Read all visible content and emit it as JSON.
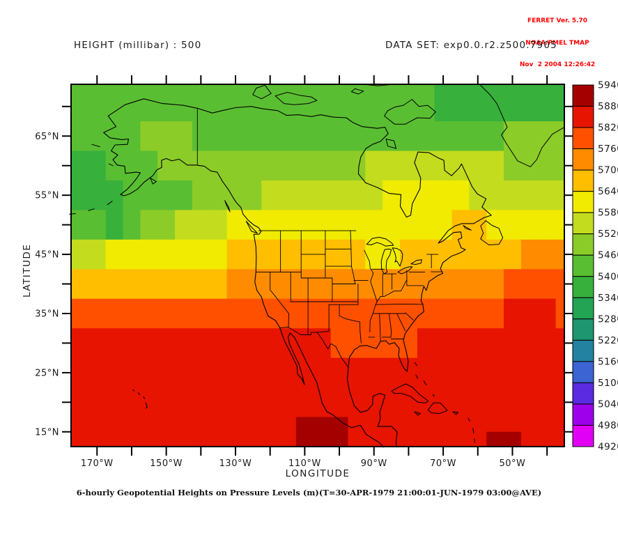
{
  "stamp": {
    "line1": "FERRET Ver. 5.70",
    "line2": "NOAA/PMEL TMAP",
    "line3": "Nov  2 2004 12:26:42",
    "color": "#FF0000"
  },
  "titles": {
    "left": "HEIGHT (millibar) : 500",
    "right": "DATA SET: exp0.0.r2.z500.7905"
  },
  "caption": "6-hourly Geopotential Heights on Pressure Levels (m)(T=30-APR-1979 21:00:01-JUN-1979 03:00@AVE)",
  "axes": {
    "x": {
      "label": "LONGITUDE",
      "minor_lons": [
        -170,
        -160,
        -150,
        -140,
        -130,
        -120,
        -110,
        -100,
        -90,
        -80,
        -70,
        -60,
        -50,
        -40
      ],
      "major_lons": [
        -170,
        -150,
        -130,
        -110,
        -90,
        -70,
        -50
      ],
      "major_labels": [
        "170°W",
        "150°W",
        "130°W",
        "110°W",
        "90°W",
        "70°W",
        "50°W"
      ]
    },
    "y": {
      "label": "LATITUDE",
      "minor_lats": [
        70,
        65,
        60,
        55,
        50,
        45,
        40,
        35,
        30,
        25,
        20,
        15
      ],
      "major_lats": [
        65,
        55,
        45,
        35,
        25,
        15
      ],
      "major_labels": [
        "65°N",
        "55°N",
        "45°N",
        "35°N",
        "25°N",
        "15°N"
      ]
    }
  },
  "colorbar": {
    "labels_top_to_bottom": [
      "5940",
      "5880",
      "5820",
      "5760",
      "5700",
      "5640",
      "5580",
      "5520",
      "5460",
      "5400",
      "5340",
      "5280",
      "5220",
      "5160",
      "5100",
      "5040",
      "4980",
      "4920"
    ]
  },
  "chart_data": {
    "type": "heatmap",
    "title": "HEIGHT (millibar) : 500",
    "xlabel": "LONGITUDE",
    "ylabel": "LATITUDE",
    "units": "m",
    "level_min": 4920,
    "level_max": 5940,
    "level_step": 60,
    "palette": [
      "#E100F5",
      "#9D00EB",
      "#5A2BE1",
      "#3C64D2",
      "#2382A0",
      "#1E9670",
      "#23A455",
      "#37B03C",
      "#5ABE32",
      "#8CCC28",
      "#C3DC1E",
      "#F0EB00",
      "#FFBE00",
      "#FF8C00",
      "#FF5000",
      "#E61400",
      "#A50000"
    ],
    "lon_edges": [
      -177.5,
      -172.5,
      -167.5,
      -162.5,
      -157.5,
      -152.5,
      -147.5,
      -142.5,
      -137.5,
      -132.5,
      -127.5,
      -122.5,
      -117.5,
      -112.5,
      -107.5,
      -102.5,
      -97.5,
      -92.5,
      -87.5,
      -82.5,
      -77.5,
      -72.5,
      -67.5,
      -62.5,
      -57.5,
      -52.5,
      -47.5,
      -42.5,
      -37.5,
      -35
    ],
    "lat_edges": [
      73.75,
      67.5,
      62.5,
      57.5,
      52.5,
      47.5,
      42.5,
      37.5,
      32.5,
      27.5,
      22.5,
      17.5,
      15,
      12.5
    ],
    "values": [
      [
        5430,
        5430,
        5430,
        5430,
        5430,
        5430,
        5430,
        5430,
        5430,
        5430,
        5430,
        5430,
        5430,
        5430,
        5430,
        5430,
        5430,
        5430,
        5430,
        5430,
        5430,
        5370,
        5370,
        5370,
        5370,
        5370,
        5370,
        5370,
        5370
      ],
      [
        5430,
        5430,
        5430,
        5430,
        5490,
        5490,
        5490,
        5430,
        5430,
        5430,
        5430,
        5430,
        5430,
        5430,
        5430,
        5430,
        5430,
        5430,
        5430,
        5430,
        5430,
        5430,
        5430,
        5430,
        5430,
        5490,
        5490,
        5490,
        5490
      ],
      [
        5370,
        5370,
        5430,
        5430,
        5430,
        5490,
        5490,
        5490,
        5490,
        5490,
        5490,
        5490,
        5490,
        5490,
        5490,
        5490,
        5490,
        5550,
        5550,
        5550,
        5550,
        5550,
        5550,
        5550,
        5550,
        5490,
        5490,
        5490,
        5490
      ],
      [
        5370,
        5370,
        5370,
        5430,
        5430,
        5430,
        5430,
        5490,
        5490,
        5490,
        5490,
        5550,
        5550,
        5550,
        5550,
        5550,
        5550,
        5550,
        5610,
        5610,
        5610,
        5610,
        5610,
        5550,
        5550,
        5550,
        5550,
        5550,
        5550
      ],
      [
        5430,
        5430,
        5370,
        5430,
        5490,
        5490,
        5550,
        5550,
        5550,
        5610,
        5610,
        5610,
        5610,
        5610,
        5610,
        5610,
        5610,
        5610,
        5610,
        5610,
        5610,
        5610,
        5670,
        5670,
        5610,
        5610,
        5610,
        5610,
        5610
      ],
      [
        5550,
        5550,
        5610,
        5610,
        5610,
        5610,
        5610,
        5610,
        5610,
        5670,
        5670,
        5670,
        5670,
        5670,
        5670,
        5670,
        5670,
        5610,
        5610,
        5670,
        5670,
        5670,
        5670,
        5670,
        5670,
        5670,
        5730,
        5730,
        5730
      ],
      [
        5670,
        5670,
        5670,
        5670,
        5670,
        5670,
        5670,
        5670,
        5670,
        5730,
        5730,
        5730,
        5730,
        5730,
        5730,
        5730,
        5730,
        5730,
        5730,
        5730,
        5730,
        5730,
        5730,
        5730,
        5730,
        5790,
        5790,
        5790,
        5790
      ],
      [
        5790,
        5790,
        5790,
        5790,
        5790,
        5790,
        5790,
        5790,
        5790,
        5790,
        5790,
        5790,
        5790,
        5790,
        5790,
        5790,
        5790,
        5790,
        5790,
        5790,
        5790,
        5790,
        5790,
        5790,
        5790,
        5850,
        5850,
        5850,
        5790
      ],
      [
        5850,
        5850,
        5850,
        5850,
        5850,
        5850,
        5850,
        5850,
        5850,
        5850,
        5850,
        5850,
        5850,
        5850,
        5850,
        5790,
        5790,
        5790,
        5790,
        5790,
        5850,
        5850,
        5850,
        5850,
        5850,
        5850,
        5850,
        5850,
        5850
      ],
      [
        5850,
        5850,
        5850,
        5850,
        5850,
        5850,
        5850,
        5850,
        5850,
        5850,
        5850,
        5850,
        5850,
        5850,
        5850,
        5850,
        5850,
        5850,
        5850,
        5850,
        5850,
        5850,
        5850,
        5850,
        5850,
        5850,
        5850,
        5850,
        5850
      ],
      [
        5850,
        5850,
        5850,
        5850,
        5850,
        5850,
        5850,
        5850,
        5850,
        5850,
        5850,
        5850,
        5850,
        5850,
        5850,
        5850,
        5850,
        5850,
        5850,
        5850,
        5850,
        5850,
        5850,
        5850,
        5850,
        5850,
        5850,
        5850,
        5850
      ],
      [
        5850,
        5850,
        5850,
        5850,
        5850,
        5850,
        5850,
        5850,
        5850,
        5850,
        5850,
        5850,
        5850,
        5910,
        5910,
        5910,
        5850,
        5850,
        5850,
        5850,
        5850,
        5850,
        5850,
        5850,
        5850,
        5850,
        5850,
        5850,
        5850
      ],
      [
        5850,
        5850,
        5850,
        5850,
        5850,
        5850,
        5850,
        5850,
        5850,
        5850,
        5850,
        5850,
        5850,
        5910,
        5910,
        5910,
        5850,
        5850,
        5850,
        5850,
        5850,
        5850,
        5850,
        5850,
        5910,
        5910,
        5850,
        5850,
        5850
      ]
    ]
  }
}
